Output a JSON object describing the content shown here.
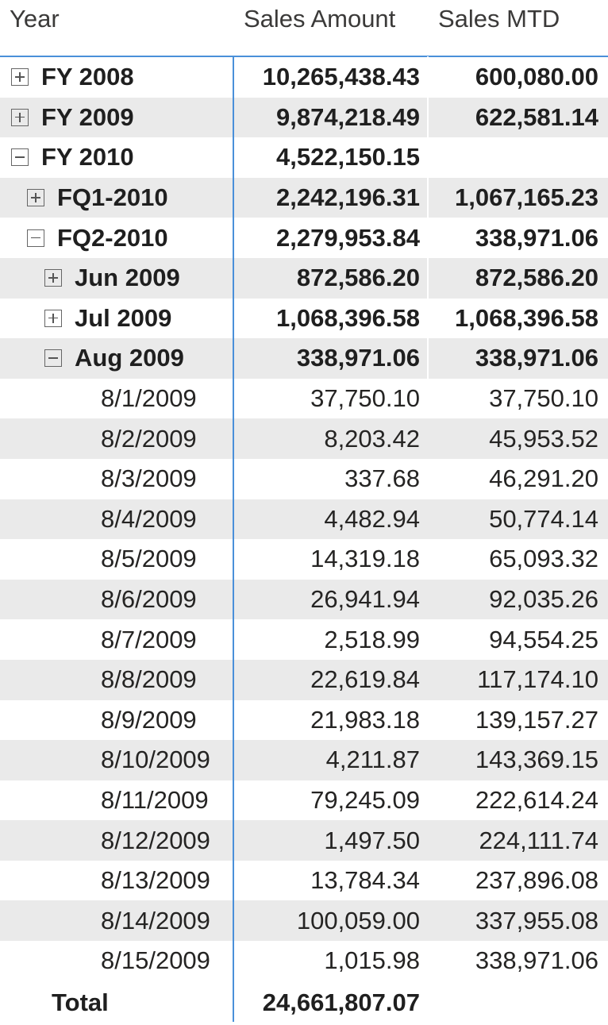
{
  "columns": {
    "year": "Year",
    "sales_amount": "Sales Amount",
    "sales_mtd": "Sales MTD"
  },
  "rows": [
    {
      "label": "FY 2008",
      "level": 0,
      "toggle": "plus",
      "bold": true,
      "sales_amount": "10,265,438.43",
      "sales_mtd": "600,080.00"
    },
    {
      "label": "FY 2009",
      "level": 0,
      "toggle": "plus",
      "bold": true,
      "sales_amount": "9,874,218.49",
      "sales_mtd": "622,581.14"
    },
    {
      "label": "FY 2010",
      "level": 0,
      "toggle": "minus",
      "bold": true,
      "sales_amount": "4,522,150.15",
      "sales_mtd": ""
    },
    {
      "label": "FQ1-2010",
      "level": 1,
      "toggle": "plus",
      "bold": true,
      "sales_amount": "2,242,196.31",
      "sales_mtd": "1,067,165.23"
    },
    {
      "label": "FQ2-2010",
      "level": 1,
      "toggle": "minus",
      "bold": true,
      "sales_amount": "2,279,953.84",
      "sales_mtd": "338,971.06"
    },
    {
      "label": "Jun 2009",
      "level": 2,
      "toggle": "plus",
      "bold": true,
      "sales_amount": "872,586.20",
      "sales_mtd": "872,586.20"
    },
    {
      "label": "Jul 2009",
      "level": 2,
      "toggle": "plus",
      "bold": true,
      "sales_amount": "1,068,396.58",
      "sales_mtd": "1,068,396.58"
    },
    {
      "label": "Aug 2009",
      "level": 2,
      "toggle": "minus",
      "bold": true,
      "sales_amount": "338,971.06",
      "sales_mtd": "338,971.06"
    },
    {
      "label": "8/1/2009",
      "level": 3,
      "toggle": "",
      "bold": false,
      "sales_amount": "37,750.10",
      "sales_mtd": "37,750.10"
    },
    {
      "label": "8/2/2009",
      "level": 3,
      "toggle": "",
      "bold": false,
      "sales_amount": "8,203.42",
      "sales_mtd": "45,953.52"
    },
    {
      "label": "8/3/2009",
      "level": 3,
      "toggle": "",
      "bold": false,
      "sales_amount": "337.68",
      "sales_mtd": "46,291.20"
    },
    {
      "label": "8/4/2009",
      "level": 3,
      "toggle": "",
      "bold": false,
      "sales_amount": "4,482.94",
      "sales_mtd": "50,774.14"
    },
    {
      "label": "8/5/2009",
      "level": 3,
      "toggle": "",
      "bold": false,
      "sales_amount": "14,319.18",
      "sales_mtd": "65,093.32"
    },
    {
      "label": "8/6/2009",
      "level": 3,
      "toggle": "",
      "bold": false,
      "sales_amount": "26,941.94",
      "sales_mtd": "92,035.26"
    },
    {
      "label": "8/7/2009",
      "level": 3,
      "toggle": "",
      "bold": false,
      "sales_amount": "2,518.99",
      "sales_mtd": "94,554.25"
    },
    {
      "label": "8/8/2009",
      "level": 3,
      "toggle": "",
      "bold": false,
      "sales_amount": "22,619.84",
      "sales_mtd": "117,174.10"
    },
    {
      "label": "8/9/2009",
      "level": 3,
      "toggle": "",
      "bold": false,
      "sales_amount": "21,983.18",
      "sales_mtd": "139,157.27"
    },
    {
      "label": "8/10/2009",
      "level": 3,
      "toggle": "",
      "bold": false,
      "sales_amount": "4,211.87",
      "sales_mtd": "143,369.15"
    },
    {
      "label": "8/11/2009",
      "level": 3,
      "toggle": "",
      "bold": false,
      "sales_amount": "79,245.09",
      "sales_mtd": "222,614.24"
    },
    {
      "label": "8/12/2009",
      "level": 3,
      "toggle": "",
      "bold": false,
      "sales_amount": "1,497.50",
      "sales_mtd": "224,111.74"
    },
    {
      "label": "8/13/2009",
      "level": 3,
      "toggle": "",
      "bold": false,
      "sales_amount": "13,784.34",
      "sales_mtd": "237,896.08"
    },
    {
      "label": "8/14/2009",
      "level": 3,
      "toggle": "",
      "bold": false,
      "sales_amount": "100,059.00",
      "sales_mtd": "337,955.08"
    },
    {
      "label": "8/15/2009",
      "level": 3,
      "toggle": "",
      "bold": false,
      "sales_amount": "1,015.98",
      "sales_mtd": "338,971.06"
    }
  ],
  "total": {
    "label": "Total",
    "sales_amount": "24,661,807.07",
    "sales_mtd": ""
  },
  "colors": {
    "accent": "#4a90d9",
    "row_shade": "#eaeaea",
    "text": "#252423"
  }
}
